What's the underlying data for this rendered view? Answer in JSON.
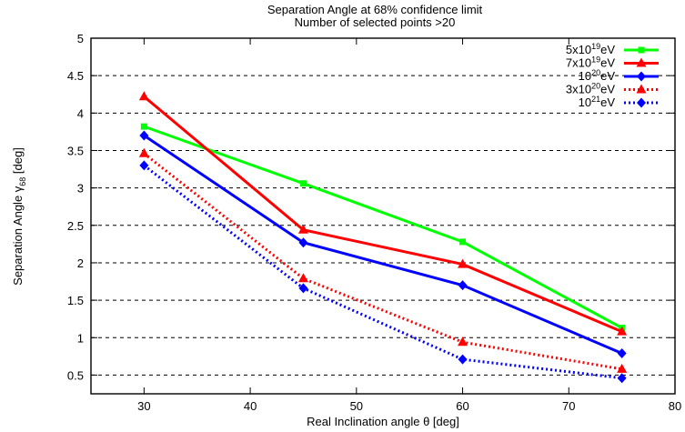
{
  "chart_data": {
    "type": "line",
    "title": "Separation Angle at 68%  confidence  limit",
    "subtitle": "Number of selected points >20",
    "xlabel": "Real Inclination angle θ [deg]",
    "ylabel_main": "Separation Angle γ",
    "ylabel_sub": "68",
    "ylabel_tail": " [deg]",
    "xlim": [
      25,
      80
    ],
    "ylim": [
      0.25,
      5
    ],
    "xticks": [
      30,
      40,
      50,
      60,
      70,
      80
    ],
    "yticks": [
      0.5,
      1,
      1.5,
      2,
      2.5,
      3,
      3.5,
      4,
      4.5,
      5
    ],
    "ytick_labels": [
      "0.5",
      "1",
      "1.5",
      "2",
      "2.5",
      "3",
      "3.5",
      "4",
      "4.5",
      "5"
    ],
    "xtick_labels": [
      "30",
      "40",
      "50",
      "60",
      "70",
      "80"
    ],
    "grid": "horizontal-dashed",
    "legend_position": "top-right",
    "x": [
      30,
      45,
      60,
      75
    ],
    "series": [
      {
        "name_base": "5x10",
        "name_exp": "19",
        "name_unit": "eV",
        "color": "#00ff00",
        "dash": "solid",
        "marker": "square",
        "values": [
          3.82,
          3.06,
          2.28,
          1.13
        ]
      },
      {
        "name_base": "7x10",
        "name_exp": "19",
        "name_unit": "eV",
        "color": "#ff0000",
        "dash": "solid",
        "marker": "triangle",
        "values": [
          4.22,
          2.44,
          1.98,
          1.08
        ]
      },
      {
        "name_base": "10",
        "name_exp": "20",
        "name_unit": "eV",
        "color": "#0000ff",
        "dash": "solid",
        "marker": "diamond",
        "values": [
          3.7,
          2.27,
          1.7,
          0.79
        ]
      },
      {
        "name_base": "3x10",
        "name_exp": "20",
        "name_unit": "eV",
        "color": "#ff0000",
        "dash": "dotted",
        "marker": "triangle",
        "values": [
          3.46,
          1.79,
          0.94,
          0.58
        ]
      },
      {
        "name_base": "10",
        "name_exp": "21",
        "name_unit": "eV",
        "color": "#0000ff",
        "dash": "dotted",
        "marker": "diamond",
        "values": [
          3.3,
          1.66,
          0.71,
          0.46
        ]
      }
    ]
  }
}
